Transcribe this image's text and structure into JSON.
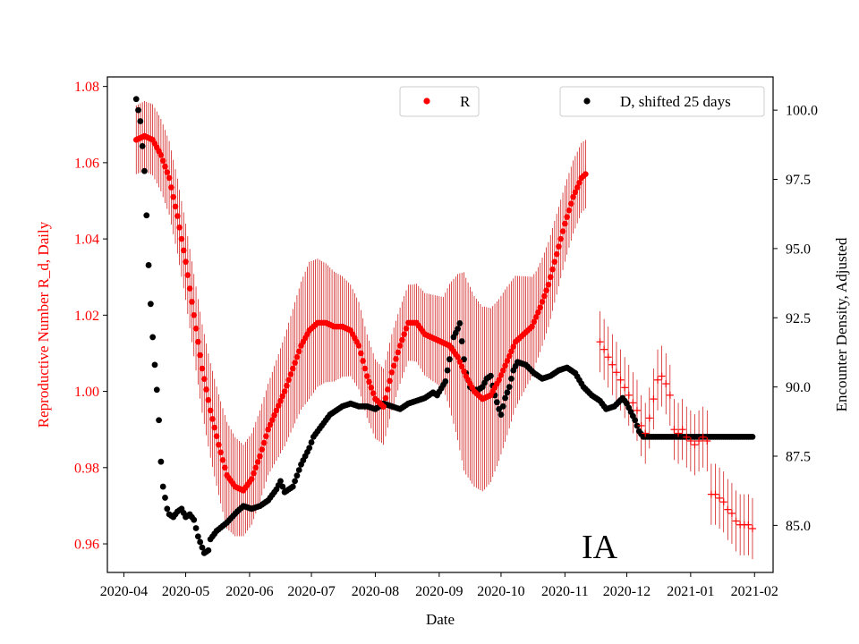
{
  "colors": {
    "r_series": "#ff0000",
    "d_series": "#000000",
    "r_errorbar": "#cc0000"
  },
  "chart_data": {
    "type": "scatter",
    "state_label": "IA",
    "xlabel": "Date",
    "ylabel_left": "Reproductive Number R_d, Daily",
    "ylabel_right": "Encounter Density, Adjusted",
    "x_ticks": [
      "2020-04",
      "2020-05",
      "2020-06",
      "2020-07",
      "2020-08",
      "2020-09",
      "2020-10",
      "2020-11",
      "2020-12",
      "2021-01",
      "2021-02"
    ],
    "x_tick_days": [
      0,
      30,
      61,
      91,
      122,
      153,
      183,
      214,
      244,
      275,
      306
    ],
    "x_range_days": [
      -8,
      315
    ],
    "ylim_left": [
      0.9525,
      1.0825
    ],
    "yticks_left": [
      "0.96",
      "0.98",
      "1.00",
      "1.02",
      "1.04",
      "1.06",
      "1.08"
    ],
    "ylim_right": [
      83.3,
      101.2
    ],
    "yticks_right": [
      "85.0",
      "87.5",
      "90.0",
      "92.5",
      "95.0",
      "97.5",
      "100.0"
    ],
    "legend_r": "R",
    "legend_d": "D, shifted 25 days",
    "r_knots": [
      [
        6,
        1.066
      ],
      [
        10,
        1.067
      ],
      [
        14,
        1.066
      ],
      [
        18,
        1.062
      ],
      [
        22,
        1.056
      ],
      [
        26,
        1.046
      ],
      [
        30,
        1.034
      ],
      [
        34,
        1.02
      ],
      [
        38,
        1.006
      ],
      [
        42,
        0.995
      ],
      [
        46,
        0.986
      ],
      [
        50,
        0.978
      ],
      [
        54,
        0.975
      ],
      [
        58,
        0.974
      ],
      [
        62,
        0.977
      ],
      [
        66,
        0.983
      ],
      [
        70,
        0.99
      ],
      [
        74,
        0.995
      ],
      [
        78,
        1.0
      ],
      [
        82,
        1.006
      ],
      [
        86,
        1.012
      ],
      [
        90,
        1.016
      ],
      [
        94,
        1.018
      ],
      [
        98,
        1.018
      ],
      [
        102,
        1.017
      ],
      [
        106,
        1.017
      ],
      [
        110,
        1.016
      ],
      [
        114,
        1.012
      ],
      [
        118,
        1.004
      ],
      [
        122,
        0.998
      ],
      [
        126,
        0.996
      ],
      [
        130,
        1.005
      ],
      [
        134,
        1.012
      ],
      [
        138,
        1.018
      ],
      [
        142,
        1.018
      ],
      [
        146,
        1.015
      ],
      [
        150,
        1.014
      ],
      [
        154,
        1.013
      ],
      [
        158,
        1.012
      ],
      [
        162,
        1.009
      ],
      [
        166,
        1.004
      ],
      [
        170,
        1.0
      ],
      [
        174,
        0.998
      ],
      [
        178,
        0.999
      ],
      [
        182,
        1.003
      ],
      [
        186,
        1.008
      ],
      [
        190,
        1.013
      ],
      [
        194,
        1.015
      ],
      [
        198,
        1.017
      ],
      [
        202,
        1.022
      ],
      [
        206,
        1.028
      ],
      [
        210,
        1.036
      ],
      [
        214,
        1.044
      ],
      [
        218,
        1.051
      ],
      [
        222,
        1.056
      ],
      [
        224,
        1.057
      ]
    ],
    "r_knots_ci": [
      [
        6,
        0.009
      ],
      [
        30,
        0.01
      ],
      [
        40,
        0.012
      ],
      [
        50,
        0.014
      ],
      [
        58,
        0.012
      ],
      [
        70,
        0.012
      ],
      [
        90,
        0.018
      ],
      [
        110,
        0.012
      ],
      [
        125,
        0.01
      ],
      [
        140,
        0.01
      ],
      [
        155,
        0.012
      ],
      [
        165,
        0.026
      ],
      [
        175,
        0.024
      ],
      [
        185,
        0.02
      ],
      [
        200,
        0.012
      ],
      [
        214,
        0.01
      ],
      [
        224,
        0.009
      ]
    ],
    "r_projection": [
      [
        231,
        1.013
      ],
      [
        233,
        1.011
      ],
      [
        235,
        1.009
      ],
      [
        237,
        1.007
      ],
      [
        239,
        1.005
      ],
      [
        241,
        1.003
      ],
      [
        243,
        1.001
      ],
      [
        245,
        0.999
      ],
      [
        247,
        0.997
      ],
      [
        249,
        0.995
      ],
      [
        251,
        0.991
      ],
      [
        253,
        0.989
      ],
      [
        255,
        0.993
      ],
      [
        257,
        0.998
      ],
      [
        259,
        1.003
      ],
      [
        261,
        1.004
      ],
      [
        263,
        1.002
      ],
      [
        265,
        0.999
      ],
      [
        267,
        0.99
      ],
      [
        269,
        0.989
      ],
      [
        271,
        0.99
      ],
      [
        273,
        0.988
      ],
      [
        275,
        0.987
      ],
      [
        277,
        0.986
      ],
      [
        279,
        0.987
      ],
      [
        281,
        0.988
      ],
      [
        283,
        0.987
      ],
      [
        285,
        0.973
      ],
      [
        287,
        0.973
      ],
      [
        289,
        0.972
      ],
      [
        291,
        0.971
      ],
      [
        293,
        0.969
      ],
      [
        295,
        0.968
      ],
      [
        297,
        0.966
      ],
      [
        299,
        0.965
      ],
      [
        301,
        0.965
      ],
      [
        303,
        0.965
      ],
      [
        305,
        0.964
      ]
    ],
    "r_projection_ci": 0.008,
    "d_knots": [
      [
        6,
        100.4
      ],
      [
        7,
        100.0
      ],
      [
        8,
        99.6
      ],
      [
        9,
        98.7
      ],
      [
        10,
        97.8
      ],
      [
        11,
        96.2
      ],
      [
        12,
        94.4
      ],
      [
        13,
        93.0
      ],
      [
        14,
        91.8
      ],
      [
        15,
        90.8
      ],
      [
        16,
        89.9
      ],
      [
        17,
        88.8
      ],
      [
        18,
        87.3
      ],
      [
        19,
        86.4
      ],
      [
        20,
        86.0
      ],
      [
        21,
        85.6
      ],
      [
        22,
        85.4
      ],
      [
        24,
        85.3
      ],
      [
        26,
        85.5
      ],
      [
        28,
        85.6
      ],
      [
        30,
        85.3
      ],
      [
        32,
        85.4
      ],
      [
        34,
        85.2
      ],
      [
        36,
        84.6
      ],
      [
        38,
        84.2
      ],
      [
        39,
        84.0
      ],
      [
        41,
        84.1
      ],
      [
        42,
        84.5
      ],
      [
        45,
        84.8
      ],
      [
        50,
        85.1
      ],
      [
        55,
        85.5
      ],
      [
        58,
        85.7
      ],
      [
        62,
        85.6
      ],
      [
        66,
        85.7
      ],
      [
        70,
        85.9
      ],
      [
        74,
        86.3
      ],
      [
        76,
        86.6
      ],
      [
        78,
        86.2
      ],
      [
        82,
        86.4
      ],
      [
        86,
        87.2
      ],
      [
        90,
        87.8
      ],
      [
        92,
        88.2
      ],
      [
        96,
        88.6
      ],
      [
        100,
        89.0
      ],
      [
        104,
        89.2
      ],
      [
        106,
        89.3
      ],
      [
        110,
        89.4
      ],
      [
        114,
        89.3
      ],
      [
        118,
        89.3
      ],
      [
        122,
        89.2
      ],
      [
        126,
        89.4
      ],
      [
        130,
        89.3
      ],
      [
        134,
        89.2
      ],
      [
        138,
        89.4
      ],
      [
        142,
        89.5
      ],
      [
        146,
        89.6
      ],
      [
        150,
        89.8
      ],
      [
        152,
        89.7
      ],
      [
        156,
        90.2
      ],
      [
        158,
        91.0
      ],
      [
        160,
        91.8
      ],
      [
        162,
        92.1
      ],
      [
        163,
        92.3
      ],
      [
        165,
        91.0
      ],
      [
        166,
        90.5
      ],
      [
        168,
        90.0
      ],
      [
        170,
        89.9
      ],
      [
        172,
        89.9
      ],
      [
        174,
        90.0
      ],
      [
        176,
        90.3
      ],
      [
        178,
        90.4
      ],
      [
        180,
        89.7
      ],
      [
        182,
        89.2
      ],
      [
        183,
        89.0
      ],
      [
        185,
        89.6
      ],
      [
        187,
        90.0
      ],
      [
        189,
        90.6
      ],
      [
        191,
        90.9
      ],
      [
        195,
        90.8
      ],
      [
        199,
        90.5
      ],
      [
        203,
        90.3
      ],
      [
        207,
        90.4
      ],
      [
        211,
        90.6
      ],
      [
        215,
        90.7
      ],
      [
        219,
        90.5
      ],
      [
        223,
        90.0
      ],
      [
        227,
        89.7
      ],
      [
        231,
        89.5
      ],
      [
        234,
        89.2
      ],
      [
        238,
        89.3
      ],
      [
        242,
        89.6
      ],
      [
        244,
        89.4
      ],
      [
        246,
        89.1
      ],
      [
        248,
        88.8
      ],
      [
        250,
        88.4
      ],
      [
        252,
        88.2
      ],
      [
        256,
        88.2
      ],
      [
        260,
        88.2
      ],
      [
        270,
        88.2
      ],
      [
        280,
        88.2
      ],
      [
        290,
        88.2
      ],
      [
        300,
        88.2
      ],
      [
        305,
        88.2
      ]
    ]
  }
}
